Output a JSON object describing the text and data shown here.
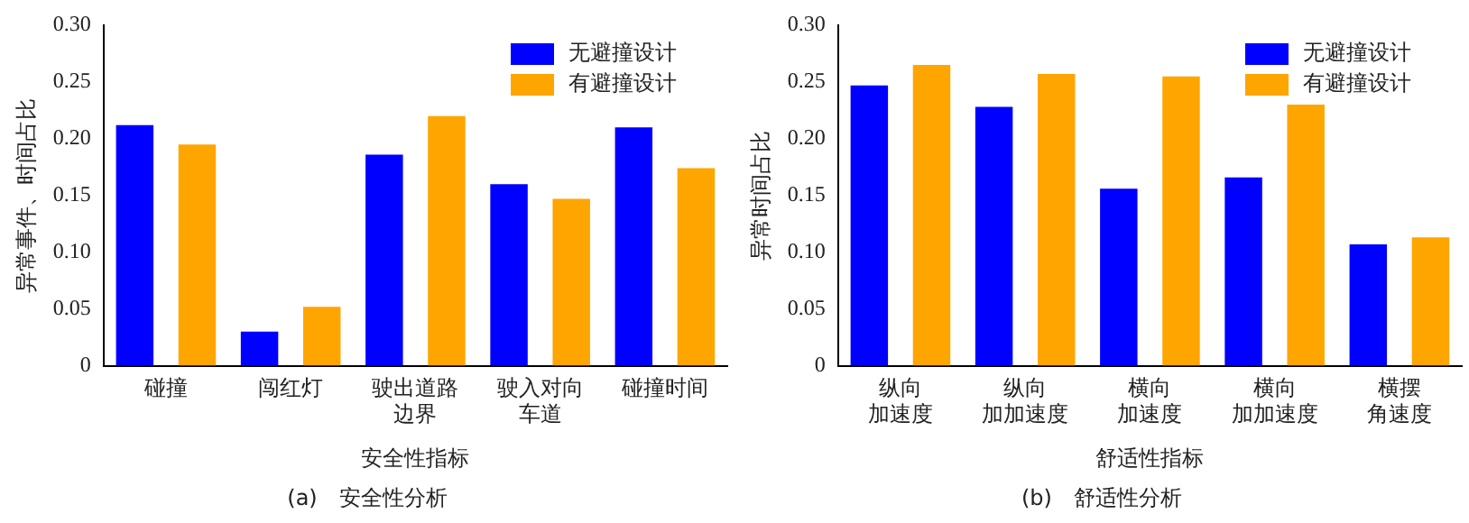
{
  "chart_data": [
    {
      "type": "bar",
      "xlabel": "安全性指标",
      "ylabel": "异常事件、时间占比",
      "categories": [
        "碰撞",
        "闯红灯",
        "驶出道路边界",
        "驶入对向车道",
        "碰撞时间"
      ],
      "series": [
        {
          "name": "无避撞设计",
          "color": "#0000ff",
          "values": [
            0.212,
            0.03,
            0.186,
            0.16,
            0.21
          ]
        },
        {
          "name": "有避撞设计",
          "color": "#ffa500",
          "values": [
            0.195,
            0.052,
            0.22,
            0.147,
            0.174
          ]
        }
      ],
      "ylim": [
        0,
        0.3
      ],
      "yticks": [
        {
          "value": 0,
          "label": "0"
        },
        0.05,
        {
          "value": 0.1,
          "label": "0.10"
        },
        0.15,
        {
          "value": 0.2,
          "label": "0.20"
        },
        0.25,
        {
          "value": 0.3,
          "label": "0.30"
        }
      ],
      "grid": false,
      "legend": "top right",
      "annotations": [
        "(a)　安全性分析"
      ]
    },
    {
      "type": "bar",
      "xlabel": "舒适性指标",
      "ylabel": "异常时间占比",
      "categories": [
        "纵向加速度",
        "纵向加加速度",
        "横向加速度",
        "横向加加速度",
        "横摆角速度"
      ],
      "series": [
        {
          "name": "无避撞设计",
          "color": "#0000ff",
          "values": [
            0.247,
            0.228,
            0.156,
            0.166,
            0.107
          ]
        },
        {
          "name": "有避撞设计",
          "color": "#ffa500",
          "values": [
            0.265,
            0.257,
            0.255,
            0.23,
            0.113
          ]
        }
      ],
      "ylim": [
        0,
        0.3
      ],
      "yticks": [
        {
          "value": 0,
          "label": "0"
        },
        0.05,
        {
          "value": 0.1,
          "label": "0.10"
        },
        0.15,
        {
          "value": 0.2,
          "label": "0.20"
        },
        0.25,
        {
          "value": 0.3,
          "label": "0.30"
        }
      ],
      "grid": false,
      "legend": "top right",
      "annotations": [
        "(b)　舒适性分析"
      ]
    }
  ]
}
